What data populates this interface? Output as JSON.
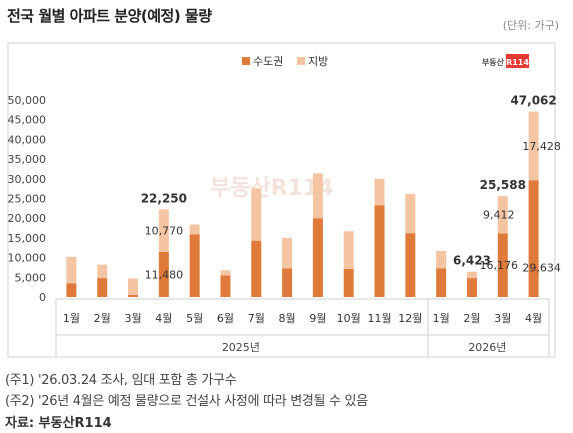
{
  "header": {
    "title": "전국 월별 아파트 분양(예정) 물량",
    "unit": "(단위: 가구)",
    "logo_text": "부동산R114"
  },
  "chart_data": {
    "type": "bar",
    "stacked": true,
    "categories": [
      "1월",
      "2월",
      "3월",
      "4월",
      "5월",
      "6월",
      "7월",
      "8월",
      "9월",
      "10월",
      "11월",
      "12월",
      "1월",
      "2월",
      "3월",
      "4월"
    ],
    "groups": [
      {
        "label": "2025년",
        "count": 12
      },
      {
        "label": "2026년",
        "count": 4
      }
    ],
    "series": [
      {
        "name": "수도권",
        "color": "#E07A3A",
        "values": [
          3500,
          4800,
          500,
          11480,
          15900,
          5500,
          14300,
          7300,
          20000,
          7100,
          23300,
          16200,
          7300,
          4800,
          16176,
          29634
        ]
      },
      {
        "name": "지방",
        "color": "#F5C5A3",
        "values": [
          6700,
          3400,
          4200,
          10770,
          2500,
          1300,
          13300,
          7700,
          11400,
          9600,
          6700,
          10000,
          4400,
          1623,
          9412,
          17428
        ]
      }
    ],
    "totals_labeled": [
      {
        "index": 3,
        "label": "22,250"
      },
      {
        "index": 13,
        "label": "6,423"
      },
      {
        "index": 14,
        "label": "25,588"
      },
      {
        "index": 15,
        "label": "47,062"
      }
    ],
    "segment_labels": [
      {
        "index": 3,
        "series": 0,
        "label": "11,480"
      },
      {
        "index": 3,
        "series": 1,
        "label": "10,770"
      },
      {
        "index": 14,
        "series": 0,
        "label": "16,176"
      },
      {
        "index": 14,
        "series": 1,
        "label": "9,412"
      },
      {
        "index": 15,
        "series": 0,
        "label": "29,634"
      },
      {
        "index": 15,
        "series": 1,
        "label": "17,428"
      }
    ],
    "ylim": [
      0,
      50000
    ],
    "yticks": [
      "0",
      "5,000",
      "10,000",
      "15,000",
      "20,000",
      "25,000",
      "30,000",
      "35,000",
      "40,000",
      "45,000",
      "50,000"
    ],
    "legend_position": "top-center",
    "grid": false
  },
  "footer": {
    "note1": "(주1) '26.03.24 조사, 임대 포함 총 가구수",
    "note2": "(주2) '26년 4월은 예정 물량으로 건설사 사정에 따라 변경될 수 있음",
    "source": "자료: 부동산R114"
  }
}
